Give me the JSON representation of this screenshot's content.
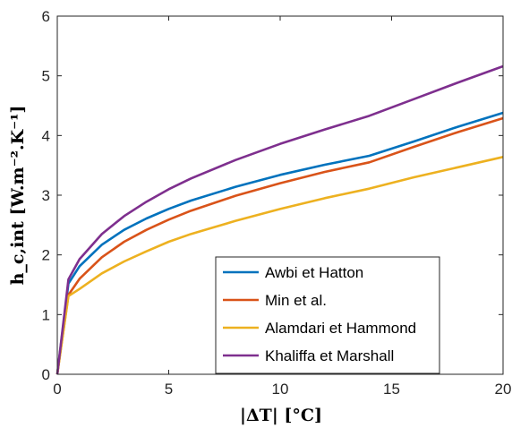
{
  "chart_data": {
    "type": "line",
    "xlabel": "|ΔT| [°C]",
    "ylabel": "h_c,int [W.m⁻².K⁻¹]",
    "xlim": [
      0,
      20
    ],
    "ylim": [
      0,
      6
    ],
    "x_ticks": [
      "0",
      "5",
      "10",
      "15",
      "20"
    ],
    "y_ticks": [
      "0",
      "1",
      "2",
      "3",
      "4",
      "5",
      "6"
    ],
    "grid": false,
    "legend_position": "bottom-right",
    "x": [
      0,
      0.5,
      1,
      2,
      3,
      4,
      5,
      6,
      8,
      10,
      12,
      14,
      16,
      18,
      20
    ],
    "series": [
      {
        "name": "Awbi et Hatton",
        "color": "#0072BD",
        "values": [
          0,
          1.52,
          1.81,
          2.17,
          2.42,
          2.61,
          2.77,
          2.91,
          3.14,
          3.34,
          3.51,
          3.66,
          3.9,
          4.15,
          4.38
        ]
      },
      {
        "name": "Min et al.",
        "color": "#D95319",
        "values": [
          0,
          1.33,
          1.6,
          1.96,
          2.22,
          2.42,
          2.59,
          2.74,
          2.99,
          3.2,
          3.39,
          3.55,
          3.81,
          4.06,
          4.29
        ]
      },
      {
        "name": "Alamdari et Hammond",
        "color": "#EDB120",
        "values": [
          0,
          1.31,
          1.43,
          1.69,
          1.89,
          2.06,
          2.22,
          2.35,
          2.57,
          2.77,
          2.95,
          3.11,
          3.3,
          3.47,
          3.64
        ]
      },
      {
        "name": "Khaliffa et Marshall",
        "color": "#7E2F8E",
        "values": [
          0,
          1.59,
          1.93,
          2.35,
          2.65,
          2.89,
          3.1,
          3.28,
          3.59,
          3.86,
          4.1,
          4.33,
          4.61,
          4.89,
          5.16
        ]
      }
    ]
  }
}
